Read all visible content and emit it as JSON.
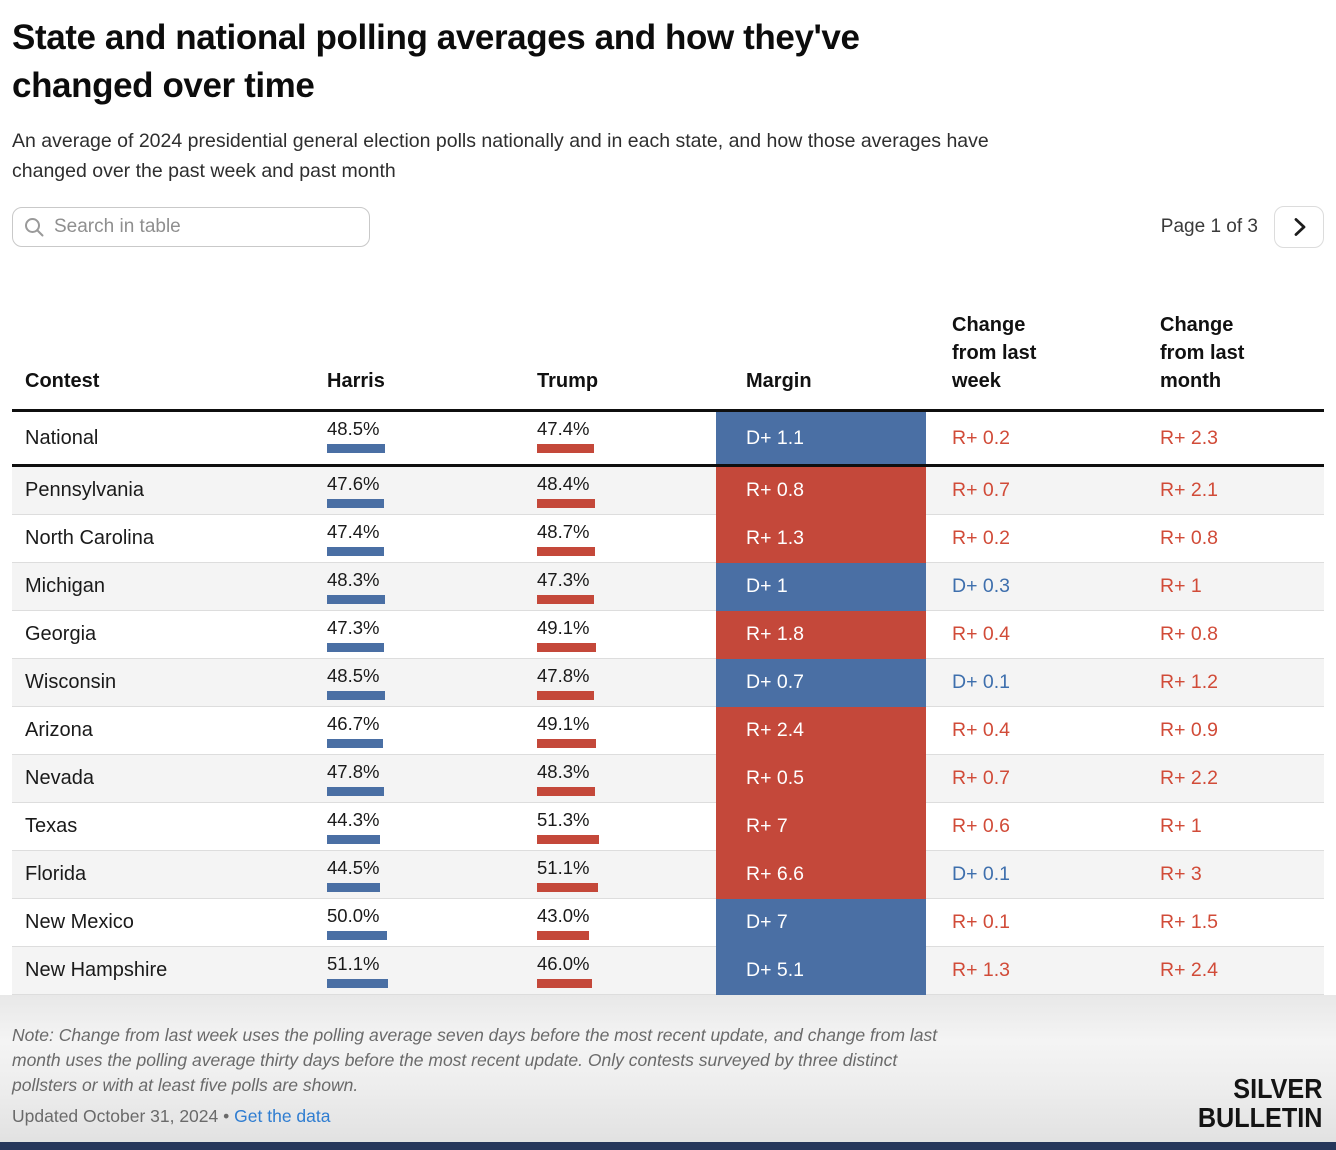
{
  "title_lines": [
    "State and national polling averages and how they've",
    "changed over time"
  ],
  "subtitle_lines": [
    "An average of 2024 presidential general election polls nationally and in each state, and how those averages have",
    "changed over the past week and past month"
  ],
  "search": {
    "placeholder": "Search in table"
  },
  "pagination": {
    "label": "Page 1 of 3"
  },
  "chart_data": {
    "type": "table",
    "title": "State and national polling averages and how they've changed over time",
    "columns": [
      "Contest",
      "Harris",
      "Trump",
      "Margin",
      "Change from last week",
      "Change from last month"
    ],
    "rows": [
      {
        "contest": "National",
        "harris": "48.5%",
        "harris_val": 48.5,
        "trump": "47.4%",
        "trump_val": 47.4,
        "margin": "D+ 1.1",
        "week": "R+ 0.2",
        "month": "R+ 2.3",
        "national": true
      },
      {
        "contest": "Pennsylvania",
        "harris": "47.6%",
        "harris_val": 47.6,
        "trump": "48.4%",
        "trump_val": 48.4,
        "margin": "R+ 0.8",
        "week": "R+ 0.7",
        "month": "R+ 2.1"
      },
      {
        "contest": "North Carolina",
        "harris": "47.4%",
        "harris_val": 47.4,
        "trump": "48.7%",
        "trump_val": 48.7,
        "margin": "R+ 1.3",
        "week": "R+ 0.2",
        "month": "R+ 0.8"
      },
      {
        "contest": "Michigan",
        "harris": "48.3%",
        "harris_val": 48.3,
        "trump": "47.3%",
        "trump_val": 47.3,
        "margin": "D+ 1",
        "week": "D+ 0.3",
        "month": "R+ 1"
      },
      {
        "contest": "Georgia",
        "harris": "47.3%",
        "harris_val": 47.3,
        "trump": "49.1%",
        "trump_val": 49.1,
        "margin": "R+ 1.8",
        "week": "R+ 0.4",
        "month": "R+ 0.8"
      },
      {
        "contest": "Wisconsin",
        "harris": "48.5%",
        "harris_val": 48.5,
        "trump": "47.8%",
        "trump_val": 47.8,
        "margin": "D+ 0.7",
        "week": "D+ 0.1",
        "month": "R+ 1.2"
      },
      {
        "contest": "Arizona",
        "harris": "46.7%",
        "harris_val": 46.7,
        "trump": "49.1%",
        "trump_val": 49.1,
        "margin": "R+ 2.4",
        "week": "R+ 0.4",
        "month": "R+ 0.9"
      },
      {
        "contest": "Nevada",
        "harris": "47.8%",
        "harris_val": 47.8,
        "trump": "48.3%",
        "trump_val": 48.3,
        "margin": "R+ 0.5",
        "week": "R+ 0.7",
        "month": "R+ 2.2"
      },
      {
        "contest": "Texas",
        "harris": "44.3%",
        "harris_val": 44.3,
        "trump": "51.3%",
        "trump_val": 51.3,
        "margin": "R+ 7",
        "week": "R+ 0.6",
        "month": "R+ 1"
      },
      {
        "contest": "Florida",
        "harris": "44.5%",
        "harris_val": 44.5,
        "trump": "51.1%",
        "trump_val": 51.1,
        "margin": "R+ 6.6",
        "week": "D+ 0.1",
        "month": "R+ 3"
      },
      {
        "contest": "New Mexico",
        "harris": "50.0%",
        "harris_val": 50.0,
        "trump": "43.0%",
        "trump_val": 43.0,
        "margin": "D+ 7",
        "week": "R+ 0.1",
        "month": "R+ 1.5"
      },
      {
        "contest": "New Hampshire",
        "harris": "51.1%",
        "harris_val": 51.1,
        "trump": "46.0%",
        "trump_val": 46.0,
        "margin": "D+ 5.1",
        "week": "R+ 1.3",
        "month": "R+ 2.4"
      }
    ]
  },
  "note_lines": [
    "Note: Change from last week uses the polling average seven days before the most recent update, and change from last",
    "month uses the polling average thirty days before the most recent update. Only contests surveyed by three distinct",
    "pollsters or with at least five polls are shown."
  ],
  "footer": {
    "updated": "Updated October 31, 2024",
    "separator": "•",
    "link": "Get the data",
    "logo_line1": "SILVER",
    "logo_line2": "BULLETIN"
  },
  "colors": {
    "dem": "#4a6fa4",
    "rep": "#c4483a",
    "dem_text": "#3e6fad",
    "rep_text": "#d14b38",
    "link": "#2f7dd1"
  }
}
